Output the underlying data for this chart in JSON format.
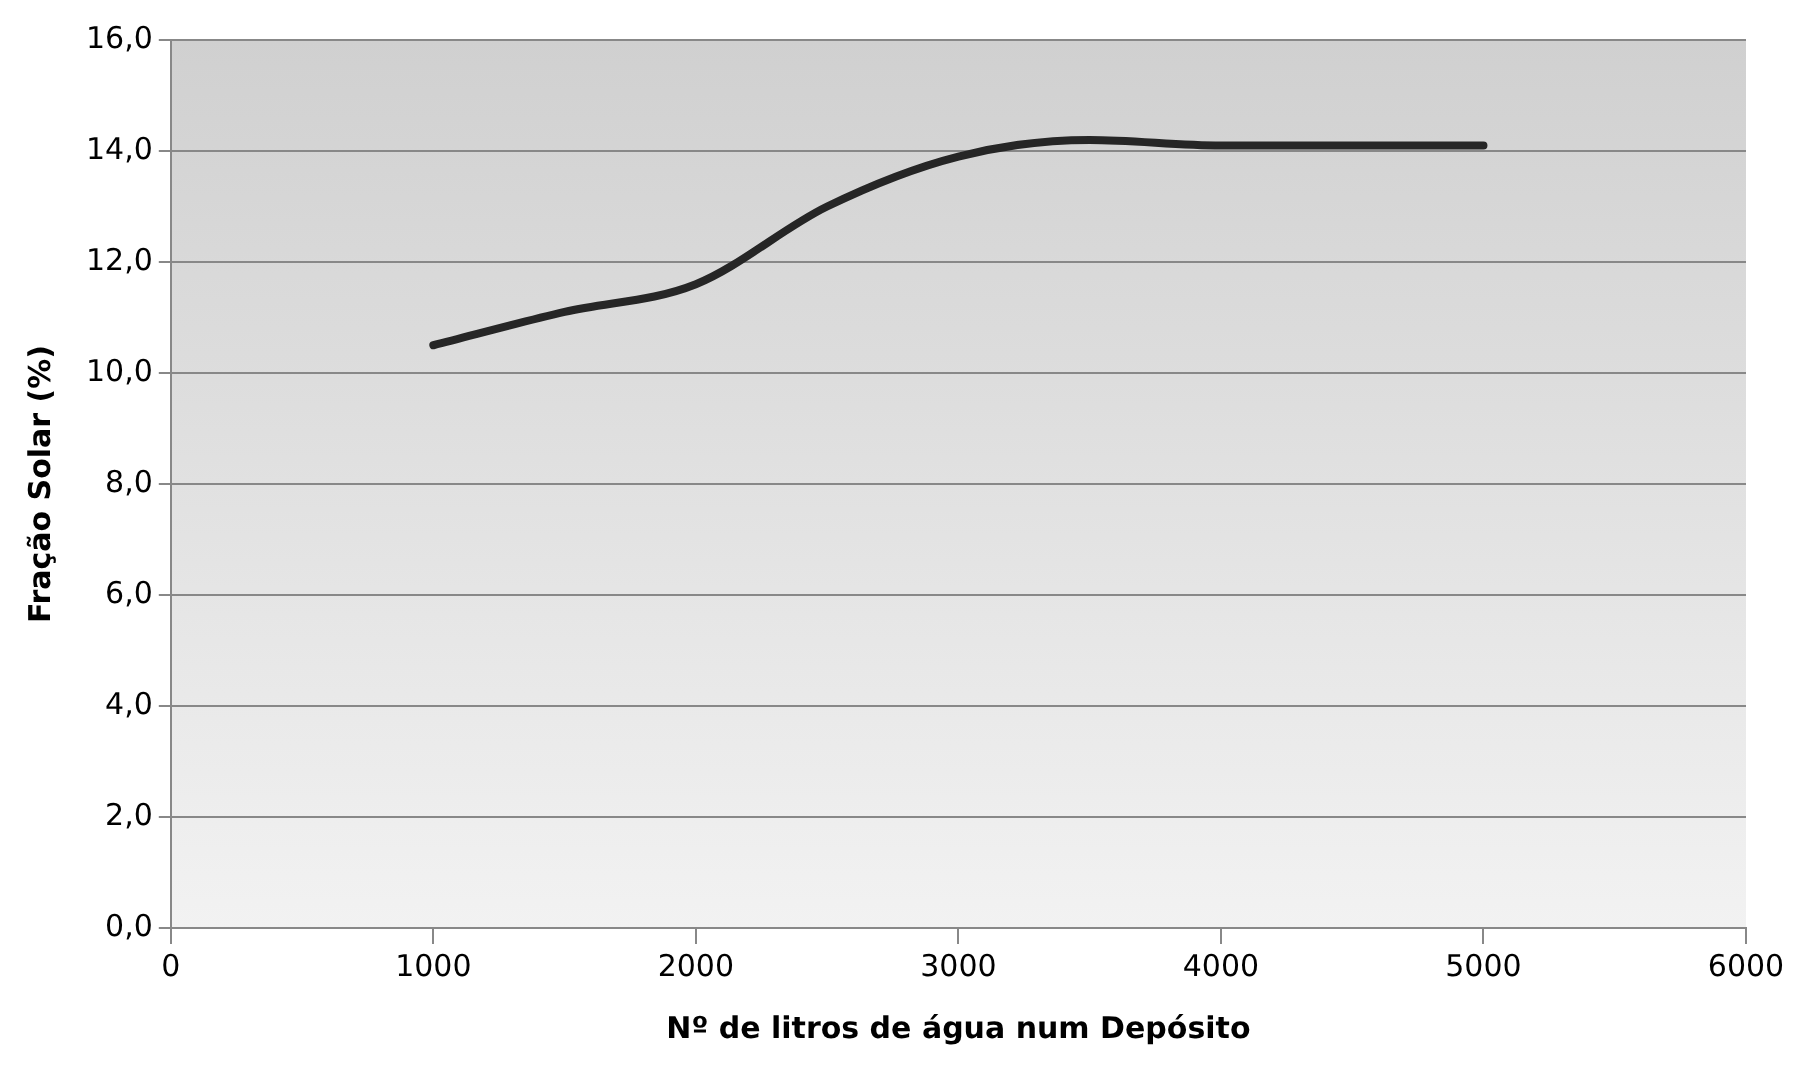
{
  "chart_data": {
    "type": "line",
    "xlabel": "Nº de litros de água num Depósito",
    "ylabel": "Fração Solar (%)",
    "x": [
      1000,
      1500,
      2000,
      2500,
      3000,
      3500,
      4000,
      4500,
      5000
    ],
    "series": [
      {
        "color": "#262626",
        "values": [
          10.5,
          11.1,
          11.6,
          13.0,
          13.9,
          14.2,
          14.1,
          14.1,
          14.1
        ]
      }
    ],
    "xlim": [
      0,
      6000
    ],
    "xticks": [
      0,
      1000,
      2000,
      3000,
      4000,
      5000,
      6000
    ],
    "ylim": [
      0,
      16
    ],
    "yticks": [
      {
        "value": 0,
        "label": "0,0"
      },
      {
        "value": 2,
        "label": "2,0"
      },
      {
        "value": 4,
        "label": "4,0"
      },
      {
        "value": 6,
        "label": "6,0"
      },
      {
        "value": 8,
        "label": "8,0"
      },
      {
        "value": 10,
        "label": "10,0"
      },
      {
        "value": 12,
        "label": "12,0"
      },
      {
        "value": 14,
        "label": "14,0"
      },
      {
        "value": 16,
        "label": "16,0"
      }
    ],
    "grid": "y",
    "legend": false,
    "marker": "none",
    "line_style": "solid"
  }
}
